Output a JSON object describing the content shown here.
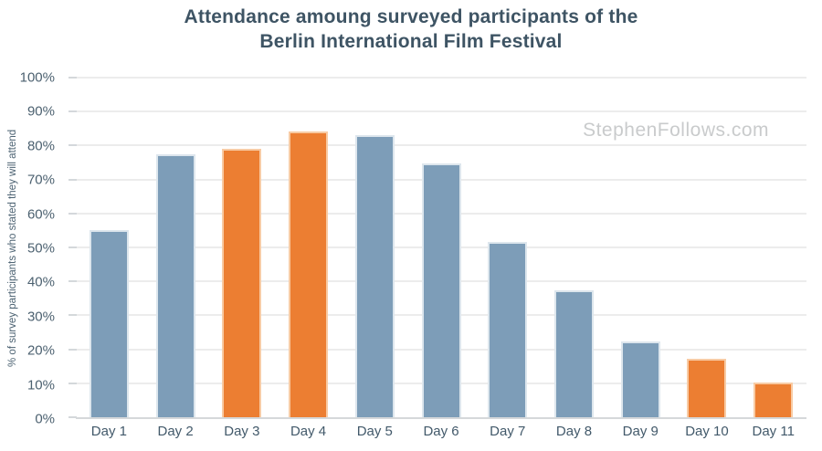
{
  "figure": {
    "title": "Attendance amoung surveyed participants of the\nBerlin International Film Festival",
    "watermark": "StephenFollows.com"
  },
  "chart_data": {
    "type": "bar",
    "title": "Attendance amoung surveyed participants of the Berlin International Film Festival",
    "categories": [
      "Day 1",
      "Day 2",
      "Day 3",
      "Day 4",
      "Day 5",
      "Day 6",
      "Day 7",
      "Day 8",
      "Day 9",
      "Day 10",
      "Day 11"
    ],
    "values": [
      55.2,
      77.3,
      79.0,
      84.1,
      83.2,
      74.8,
      51.5,
      37.5,
      22.2,
      17.2,
      10.3
    ],
    "highlighted": [
      false,
      false,
      true,
      true,
      false,
      false,
      false,
      false,
      false,
      true,
      true
    ],
    "xlabel": "",
    "ylabel": "% of survey participants who stated they will attend",
    "ylim": [
      0,
      100
    ],
    "yticks": [
      0,
      10,
      20,
      30,
      40,
      50,
      60,
      70,
      80,
      90,
      100
    ],
    "ytick_labels": [
      "0%",
      "10%",
      "20%",
      "30%",
      "40%",
      "50%",
      "60%",
      "70%",
      "80%",
      "90%",
      "100%"
    ],
    "grid": true,
    "legend_position": "none",
    "colors": {
      "bar_default": "#7d9db8",
      "bar_default_border": "#dde6ed",
      "bar_highlight": "#ec7e32",
      "bar_highlight_border": "#f8cba4",
      "gridline": "#ececec",
      "axis_line": "#d5d8da",
      "title_text": "#3e5464",
      "tick_text": "#4c6170",
      "watermark_text": "#c9cbcc",
      "background": "#ffffff"
    }
  }
}
